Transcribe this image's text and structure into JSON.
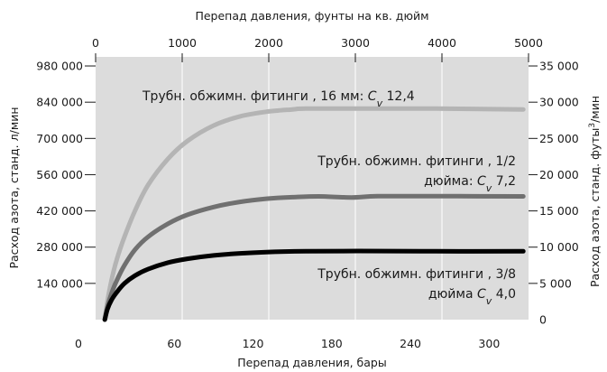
{
  "chart_data": {
    "type": "line",
    "xlabel_bottom": "Перепад давления, бары",
    "xlabel_top": "Перепад давления, фунты на кв. дюйм",
    "ylabel_left": "Расход азота, станд. л/мин",
    "ylabel_right_parts": [
      "Расход азота, станд. футы",
      "3",
      "/мин"
    ],
    "x_bottom": {
      "range": [
        0,
        330
      ],
      "ticks": [
        0,
        60,
        120,
        180,
        240,
        300
      ],
      "tick_labels": [
        "0",
        "60",
        "120",
        "180",
        "240",
        "300"
      ]
    },
    "x_top": {
      "range": [
        0,
        5000
      ],
      "ticks": [
        0,
        1000,
        2000,
        3000,
        4000,
        5000
      ],
      "tick_labels": [
        "0",
        "1000",
        "2000",
        "3000",
        "4000",
        "5000"
      ]
    },
    "y_left": {
      "range": [
        0,
        1015000
      ],
      "ticks": [
        140000,
        280000,
        420000,
        560000,
        700000,
        840000,
        980000
      ],
      "tick_labels": [
        "140 000",
        "280 000",
        "420 000",
        "560 000",
        "700 000",
        "840 000",
        "980 000"
      ]
    },
    "y_right": {
      "range": [
        0,
        36250
      ],
      "ticks": [
        0,
        5000,
        10000,
        15000,
        20000,
        25000,
        30000,
        35000
      ],
      "tick_labels": [
        "0",
        "5 000",
        "10 000",
        "15 000",
        "20 000",
        "25 000",
        "30 000",
        "35 000"
      ]
    },
    "series": [
      {
        "color": "#b4b4b4",
        "label_lines": [
          [
            {
              "t": "Трубн. обжимн. фитинги , 16 мм: "
            },
            {
              "t": "C",
              "i": true
            },
            {
              "t": "v",
              "i": true,
              "sub": true
            },
            {
              "t": " 12,4"
            }
          ]
        ],
        "points": [
          [
            7,
            0
          ],
          [
            9,
            70000
          ],
          [
            12,
            150000
          ],
          [
            16,
            230000
          ],
          [
            22,
            320000
          ],
          [
            30,
            420000
          ],
          [
            40,
            520000
          ],
          [
            55,
            620000
          ],
          [
            70,
            690000
          ],
          [
            90,
            750000
          ],
          [
            110,
            785000
          ],
          [
            130,
            803000
          ],
          [
            150,
            812000
          ],
          [
            160,
            815000
          ],
          [
            200,
            815000
          ],
          [
            260,
            815000
          ],
          [
            326,
            812000
          ]
        ]
      },
      {
        "color": "#707070",
        "label_lines": [
          [
            {
              "t": "Трубн. обжимн. фитинги ,  1/2"
            }
          ],
          [
            {
              "t": "дюйма: "
            },
            {
              "t": "C",
              "i": true
            },
            {
              "t": "v",
              "i": true,
              "sub": true
            },
            {
              "t": " 7,2"
            }
          ]
        ],
        "points": [
          [
            7,
            0
          ],
          [
            9,
            50000
          ],
          [
            12,
            100000
          ],
          [
            16,
            150000
          ],
          [
            22,
            210000
          ],
          [
            30,
            270000
          ],
          [
            40,
            320000
          ],
          [
            55,
            370000
          ],
          [
            70,
            405000
          ],
          [
            90,
            435000
          ],
          [
            110,
            455000
          ],
          [
            130,
            467000
          ],
          [
            150,
            473000
          ],
          [
            170,
            476000
          ],
          [
            195,
            472000
          ],
          [
            215,
            477000
          ],
          [
            260,
            477000
          ],
          [
            326,
            476000
          ]
        ]
      },
      {
        "color": "#000000",
        "label_lines": [
          [
            {
              "t": "Трубн. обжимн. фитинги ,  3/8"
            }
          ],
          [
            {
              "t": "дюйма "
            },
            {
              "t": "C",
              "i": true
            },
            {
              "t": "v",
              "i": true,
              "sub": true
            },
            {
              "t": "  4,0"
            }
          ]
        ],
        "points": [
          [
            7,
            0
          ],
          [
            9,
            40000
          ],
          [
            12,
            75000
          ],
          [
            16,
            105000
          ],
          [
            22,
            140000
          ],
          [
            30,
            170000
          ],
          [
            40,
            195000
          ],
          [
            55,
            220000
          ],
          [
            70,
            235000
          ],
          [
            90,
            248000
          ],
          [
            110,
            256000
          ],
          [
            130,
            261000
          ],
          [
            160,
            264000
          ],
          [
            200,
            265000
          ],
          [
            260,
            264000
          ],
          [
            326,
            264000
          ]
        ]
      }
    ],
    "grid": true
  }
}
